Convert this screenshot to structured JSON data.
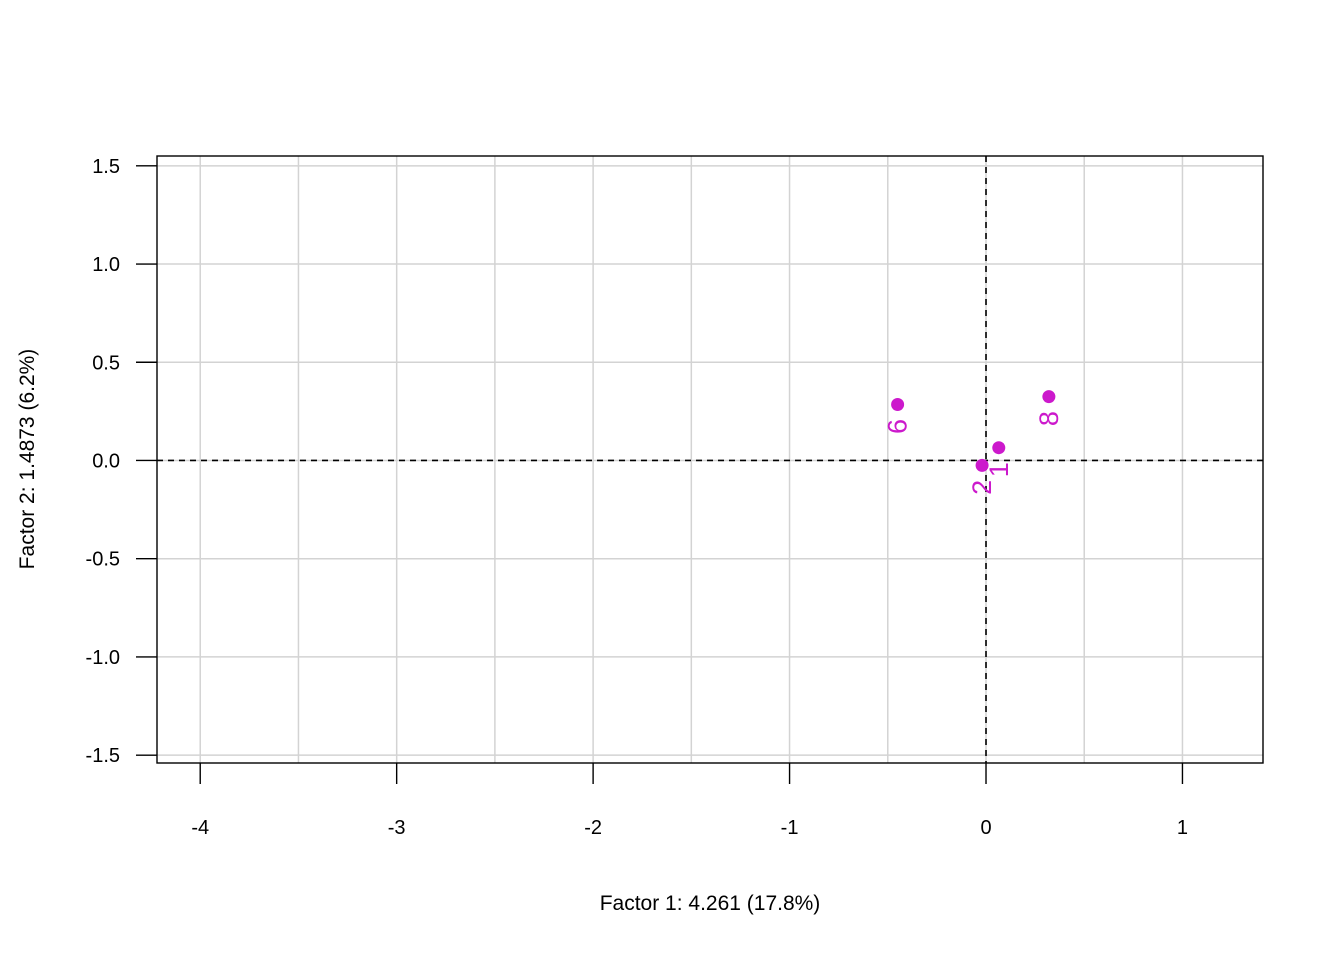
{
  "chart_data": {
    "type": "scatter",
    "xlabel": "Factor 1: 4.261 (17.8%)",
    "ylabel": "Factor 2: 1.4873 (6.2%)",
    "xlim": [
      -4.22,
      1.41
    ],
    "ylim": [
      -1.54,
      1.55
    ],
    "x_ticks": [
      -4,
      -3,
      -2,
      -1,
      0,
      1
    ],
    "x_tick_labels": [
      "-4",
      "-3",
      "-2",
      "-1",
      "0",
      "1"
    ],
    "y_ticks": [
      -1.5,
      -1.0,
      -0.5,
      0.0,
      0.5,
      1.0,
      1.5
    ],
    "y_tick_labels": [
      "-1.5",
      "-1.0",
      "-0.5",
      "0.0",
      "0.5",
      "1.0",
      "1.5"
    ],
    "x_grid": [
      -4,
      -3.5,
      -3,
      -2.5,
      -2,
      -1.5,
      -1,
      -0.5,
      0,
      0.5,
      1
    ],
    "y_grid": [
      -1.5,
      -1.0,
      -0.5,
      0.0,
      0.5,
      1.0,
      1.5
    ],
    "grid": true,
    "reference_lines": {
      "x": 0,
      "y": 0,
      "style": "dashed"
    },
    "point_color": "#CC19CC",
    "grid_color": "#D3D3D3",
    "points": [
      {
        "label": "6",
        "x": -0.45,
        "y": 0.285,
        "label_rotation": -90
      },
      {
        "label": "8",
        "x": 0.32,
        "y": 0.325,
        "label_rotation": -90
      },
      {
        "label": "1",
        "x": 0.065,
        "y": 0.065,
        "label_rotation": -90
      },
      {
        "label": "2",
        "x": -0.02,
        "y": -0.025,
        "label_rotation": -90
      }
    ]
  }
}
